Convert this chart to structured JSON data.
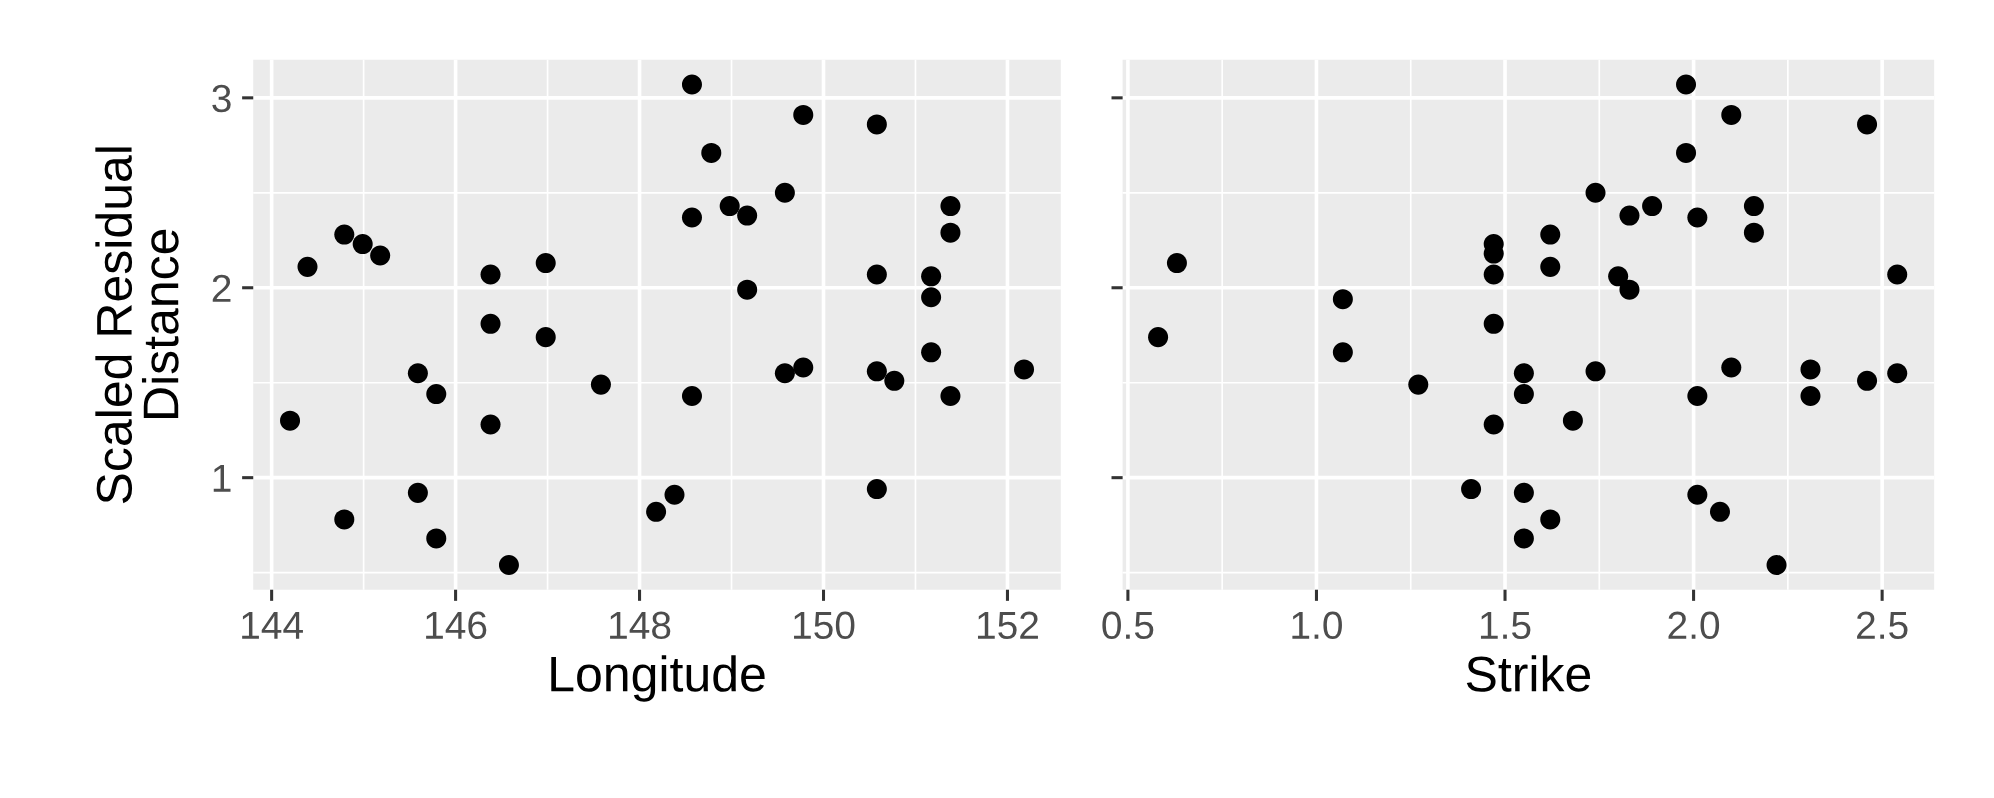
{
  "chart_data": [
    {
      "type": "scatter",
      "xlabel": "Longitude",
      "ylabel": "Scaled Residual\nDistance",
      "marker": "circle",
      "grid": true,
      "xlim": [
        143.8,
        152.58
      ],
      "ylim": [
        0.41,
        3.2
      ],
      "xticks": [
        144,
        146,
        148,
        150,
        152
      ],
      "yticks": [
        1,
        2,
        3
      ],
      "series": [
        {
          "color": "#000000",
          "x": [
            148.57,
            149.78,
            150.58,
            148.78,
            149.58,
            148.98,
            149.17,
            148.57,
            151.38,
            151.38,
            144.79,
            144.99,
            145.18,
            144.39,
            146.38,
            146.98,
            150.58,
            151.17,
            149.17,
            151.17,
            146.38,
            146.98,
            151.17,
            145.59,
            149.58,
            149.78,
            150.58,
            150.77,
            152.18,
            145.79,
            147.58,
            148.57,
            151.38,
            144.2,
            146.38,
            145.59,
            148.38,
            150.58,
            144.79,
            148.18,
            145.79,
            146.58
          ],
          "values": [
            3.07,
            2.91,
            2.86,
            2.71,
            2.5,
            2.43,
            2.38,
            2.37,
            2.43,
            2.29,
            2.28,
            2.23,
            2.17,
            2.11,
            2.07,
            2.13,
            2.07,
            2.06,
            1.99,
            1.95,
            1.81,
            1.74,
            1.66,
            1.55,
            1.55,
            1.58,
            1.56,
            1.51,
            1.57,
            1.44,
            1.49,
            1.43,
            1.43,
            1.3,
            1.28,
            0.92,
            0.91,
            0.94,
            0.78,
            0.82,
            0.68,
            0.54
          ]
        }
      ]
    },
    {
      "type": "scatter",
      "xlabel": "Strike",
      "marker": "circle",
      "grid": true,
      "tick_labels": "x",
      "xlim": [
        0.486,
        2.638
      ],
      "ylim": [
        0.41,
        3.2
      ],
      "xticks": [
        {
          "value": 0.5,
          "label": "0.5"
        },
        {
          "value": 1.0,
          "label": "1.0"
        },
        {
          "value": 1.5,
          "label": "1.5"
        },
        {
          "value": 2.0,
          "label": "2.0"
        },
        {
          "value": 2.5,
          "label": "2.5"
        }
      ],
      "yticks": [
        1,
        2,
        3
      ],
      "series": [
        {
          "color": "#000000",
          "x": [
            1.98,
            2.1,
            2.46,
            1.98,
            1.74,
            1.89,
            1.83,
            2.01,
            2.16,
            2.16,
            1.62,
            1.47,
            1.47,
            0.63,
            1.47,
            1.62,
            2.54,
            1.8,
            1.83,
            1.07,
            1.47,
            0.58,
            1.07,
            1.55,
            1.74,
            2.1,
            2.31,
            2.54,
            2.46,
            1.27,
            1.55,
            2.01,
            2.31,
            1.68,
            1.47,
            1.41,
            1.55,
            2.01,
            2.07,
            1.62,
            1.55,
            2.22
          ],
          "values": [
            3.07,
            2.91,
            2.86,
            2.71,
            2.5,
            2.43,
            2.38,
            2.37,
            2.43,
            2.29,
            2.28,
            2.23,
            2.18,
            2.13,
            2.07,
            2.11,
            2.07,
            2.06,
            1.99,
            1.94,
            1.81,
            1.74,
            1.66,
            1.55,
            1.56,
            1.58,
            1.57,
            1.55,
            1.51,
            1.49,
            1.44,
            1.43,
            1.43,
            1.3,
            1.28,
            0.94,
            0.92,
            0.91,
            0.82,
            0.78,
            0.68,
            0.54
          ]
        }
      ]
    }
  ]
}
